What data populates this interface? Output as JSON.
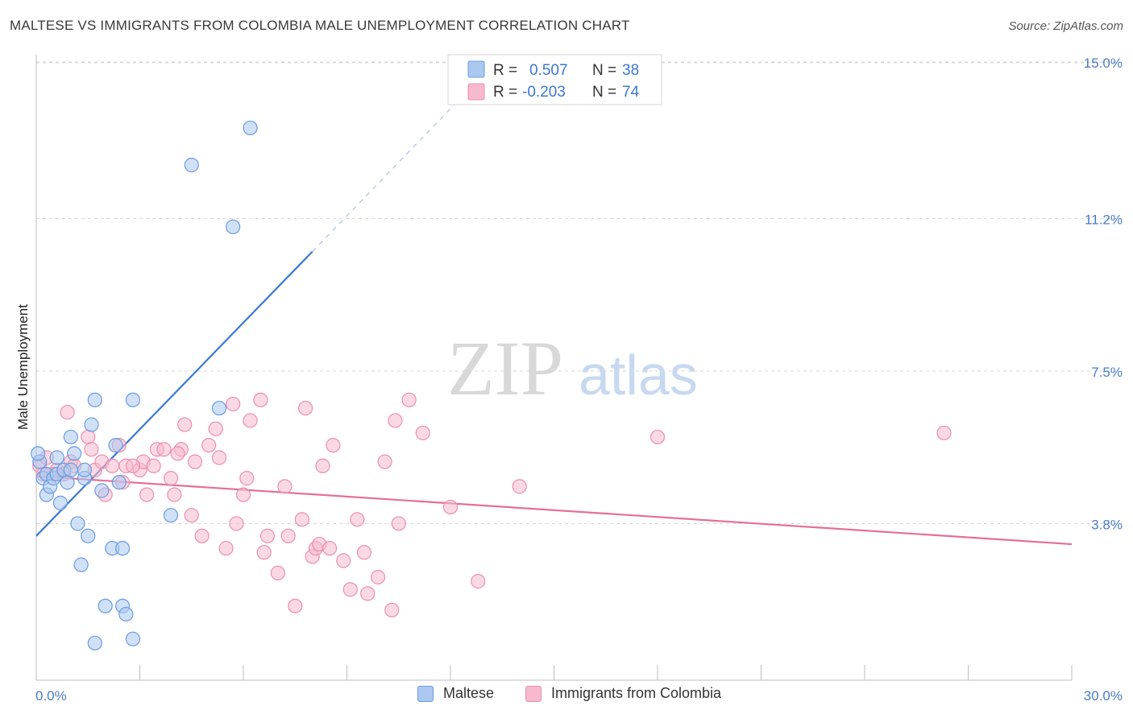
{
  "title": "MALTESE VS IMMIGRANTS FROM COLOMBIA MALE UNEMPLOYMENT CORRELATION CHART",
  "source": "Source: ZipAtlas.com",
  "watermark": {
    "zip": "ZIP",
    "atlas": "atlas"
  },
  "colors": {
    "blue_fill": "#aac8f0",
    "blue_stroke": "#6b9be0",
    "blue_line": "#3a78d4",
    "pink_fill": "#f7b9cd",
    "pink_stroke": "#ec8fae",
    "pink_line": "#e46f99",
    "tick_text": "#4a7cc9",
    "grid": "#d9d9d9"
  },
  "legend": {
    "rows": [
      {
        "r_label": "R = ",
        "r_value": "0.507",
        "n_label": "N = ",
        "n_value": "38"
      },
      {
        "r_label": "R = ",
        "r_value": "-0.203",
        "n_label": "N = ",
        "n_value": "74"
      }
    ]
  },
  "bottom_legend": {
    "maltese": "Maltese",
    "colombia": "Immigrants from Colombia"
  },
  "chart_data": {
    "type": "scatter",
    "title": "MALTESE VS IMMIGRANTS FROM COLOMBIA MALE UNEMPLOYMENT CORRELATION CHART",
    "xlabel": "",
    "ylabel": "Male Unemployment",
    "xlim": [
      0,
      30
    ],
    "ylim": [
      0,
      15.5
    ],
    "x_tick_labels": [
      "0.0%",
      "30.0%"
    ],
    "y_ticks": [
      3.8,
      7.5,
      11.2,
      15.0
    ],
    "y_tick_labels": [
      "3.8%",
      "7.5%",
      "11.2%",
      "15.0%"
    ],
    "series": [
      {
        "name": "Maltese",
        "r": 0.507,
        "n": 38,
        "trend": {
          "x0": 0,
          "y0": 3.5,
          "x1": 8.0,
          "y1": 10.4,
          "dash_to_x": 12.5,
          "dash_to_y": 14.3
        },
        "points": [
          [
            0.1,
            5.3
          ],
          [
            0.2,
            4.9
          ],
          [
            0.3,
            4.5
          ],
          [
            0.3,
            5.0
          ],
          [
            0.4,
            4.7
          ],
          [
            0.5,
            4.9
          ],
          [
            0.6,
            5.0
          ],
          [
            0.6,
            5.4
          ],
          [
            0.7,
            4.3
          ],
          [
            0.8,
            5.1
          ],
          [
            0.9,
            4.8
          ],
          [
            1.0,
            5.9
          ],
          [
            1.0,
            5.1
          ],
          [
            1.1,
            5.5
          ],
          [
            1.2,
            3.8
          ],
          [
            1.3,
            2.8
          ],
          [
            1.4,
            4.9
          ],
          [
            1.4,
            5.1
          ],
          [
            1.5,
            3.5
          ],
          [
            1.6,
            6.2
          ],
          [
            1.7,
            6.8
          ],
          [
            1.7,
            0.9
          ],
          [
            1.9,
            4.6
          ],
          [
            2.0,
            1.8
          ],
          [
            2.2,
            3.2
          ],
          [
            2.3,
            5.7
          ],
          [
            2.4,
            4.8
          ],
          [
            2.5,
            3.2
          ],
          [
            2.5,
            1.8
          ],
          [
            2.6,
            1.6
          ],
          [
            2.8,
            1.0
          ],
          [
            2.8,
            6.8
          ],
          [
            3.9,
            4.0
          ],
          [
            4.5,
            12.5
          ],
          [
            5.3,
            6.6
          ],
          [
            5.7,
            11.0
          ],
          [
            6.2,
            13.4
          ],
          [
            0.05,
            5.5
          ]
        ]
      },
      {
        "name": "Immigrants from Colombia",
        "r": -0.203,
        "n": 74,
        "trend": {
          "x0": 0,
          "y0": 4.95,
          "x1": 30,
          "y1": 3.3
        },
        "points": [
          [
            0.1,
            5.2
          ],
          [
            0.3,
            5.4
          ],
          [
            0.5,
            5.0
          ],
          [
            0.6,
            5.1
          ],
          [
            0.8,
            5.0
          ],
          [
            1.0,
            5.3
          ],
          [
            1.1,
            5.2
          ],
          [
            1.5,
            5.9
          ],
          [
            1.7,
            5.1
          ],
          [
            1.9,
            5.3
          ],
          [
            2.0,
            4.5
          ],
          [
            2.2,
            5.2
          ],
          [
            2.4,
            5.7
          ],
          [
            2.5,
            4.8
          ],
          [
            2.6,
            5.2
          ],
          [
            3.0,
            5.1
          ],
          [
            3.1,
            5.3
          ],
          [
            3.2,
            4.5
          ],
          [
            3.5,
            5.6
          ],
          [
            3.7,
            5.6
          ],
          [
            3.9,
            4.9
          ],
          [
            4.0,
            4.5
          ],
          [
            4.2,
            5.6
          ],
          [
            4.3,
            6.2
          ],
          [
            4.5,
            4.0
          ],
          [
            4.6,
            5.3
          ],
          [
            4.8,
            3.5
          ],
          [
            5.0,
            5.7
          ],
          [
            5.2,
            6.1
          ],
          [
            5.3,
            5.4
          ],
          [
            5.5,
            3.2
          ],
          [
            5.7,
            6.7
          ],
          [
            5.8,
            3.8
          ],
          [
            6.0,
            4.5
          ],
          [
            6.1,
            4.9
          ],
          [
            6.2,
            6.3
          ],
          [
            6.5,
            6.8
          ],
          [
            6.6,
            3.1
          ],
          [
            6.7,
            3.5
          ],
          [
            7.0,
            2.6
          ],
          [
            7.2,
            4.7
          ],
          [
            7.3,
            3.5
          ],
          [
            7.5,
            1.8
          ],
          [
            7.7,
            3.9
          ],
          [
            7.8,
            6.6
          ],
          [
            8.0,
            3.0
          ],
          [
            8.1,
            3.2
          ],
          [
            8.2,
            3.3
          ],
          [
            8.3,
            5.2
          ],
          [
            8.5,
            3.2
          ],
          [
            8.6,
            5.7
          ],
          [
            8.9,
            2.9
          ],
          [
            9.1,
            2.2
          ],
          [
            9.3,
            3.9
          ],
          [
            9.5,
            3.1
          ],
          [
            9.6,
            2.1
          ],
          [
            9.9,
            2.5
          ],
          [
            10.1,
            5.3
          ],
          [
            10.3,
            1.7
          ],
          [
            10.4,
            6.3
          ],
          [
            10.5,
            3.8
          ],
          [
            10.8,
            6.8
          ],
          [
            11.2,
            6.0
          ],
          [
            12.0,
            4.2
          ],
          [
            12.8,
            2.4
          ],
          [
            14.0,
            4.7
          ],
          [
            18.0,
            5.9
          ],
          [
            26.3,
            6.0
          ],
          [
            0.9,
            6.5
          ],
          [
            1.6,
            5.6
          ],
          [
            2.8,
            5.2
          ],
          [
            3.4,
            5.2
          ],
          [
            4.1,
            5.5
          ],
          [
            0.2,
            5.0
          ]
        ]
      }
    ]
  }
}
